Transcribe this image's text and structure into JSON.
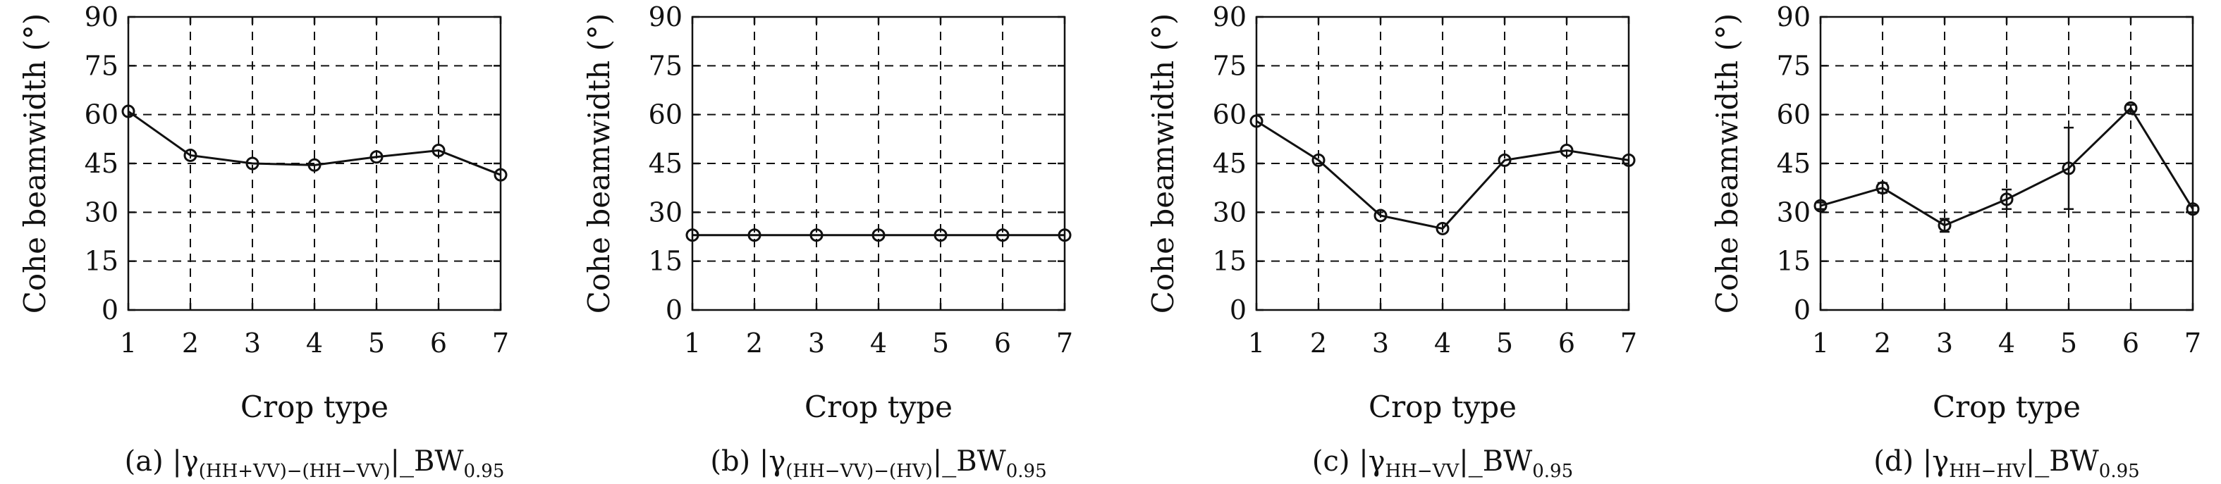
{
  "chart_data": [
    {
      "type": "line",
      "panel": "a",
      "caption": {
        "prefix": "(a) |γ",
        "subscript": "(HH+VV)−(HH−VV)",
        "suffix": "|_BW",
        "suffix_sub": "0.95"
      },
      "xlabel": "Crop type",
      "ylabel": "Cohe beamwidth (°)",
      "x": [
        1,
        2,
        3,
        4,
        5,
        6,
        7
      ],
      "xticks": [
        "1",
        "2",
        "3",
        "4",
        "5",
        "6",
        "7"
      ],
      "yticks": [
        "0",
        "15",
        "30",
        "45",
        "60",
        "75",
        "90"
      ],
      "ylim": [
        0,
        90
      ],
      "grid": true,
      "marker": "circle",
      "series": [
        {
          "values": [
            61,
            47.5,
            45,
            44.5,
            47,
            49,
            41.5
          ]
        }
      ]
    },
    {
      "type": "line",
      "panel": "b",
      "caption": {
        "prefix": "(b) |γ",
        "subscript": "(HH−VV)−(HV)",
        "suffix": "|_BW",
        "suffix_sub": "0.95"
      },
      "xlabel": "Crop type",
      "ylabel": "Cohe beamwidth (°)",
      "x": [
        1,
        2,
        3,
        4,
        5,
        6,
        7
      ],
      "xticks": [
        "1",
        "2",
        "3",
        "4",
        "5",
        "6",
        "7"
      ],
      "yticks": [
        "0",
        "15",
        "30",
        "45",
        "60",
        "75",
        "90"
      ],
      "ylim": [
        0,
        90
      ],
      "grid": true,
      "marker": "circle",
      "series": [
        {
          "values": [
            23,
            23,
            23,
            23,
            23,
            23,
            23
          ]
        }
      ]
    },
    {
      "type": "line",
      "panel": "c",
      "caption": {
        "prefix": "(c) |γ",
        "subscript": "HH−VV",
        "suffix": "|_BW",
        "suffix_sub": "0.95"
      },
      "xlabel": "Crop type",
      "ylabel": "Cohe beamwidth (°)",
      "x": [
        1,
        2,
        3,
        4,
        5,
        6,
        7
      ],
      "xticks": [
        "1",
        "2",
        "3",
        "4",
        "5",
        "6",
        "7"
      ],
      "yticks": [
        "0",
        "15",
        "30",
        "45",
        "60",
        "75",
        "90"
      ],
      "ylim": [
        0,
        90
      ],
      "grid": true,
      "marker": "circle",
      "series": [
        {
          "values": [
            58,
            46,
            29,
            25,
            46,
            49,
            46
          ]
        }
      ]
    },
    {
      "type": "line",
      "panel": "d",
      "caption": {
        "prefix": "(d) |γ",
        "subscript": "HH−HV",
        "suffix": "|_BW",
        "suffix_sub": "0.95"
      },
      "xlabel": "Crop type",
      "ylabel": "Cohe beamwidth (°)",
      "x": [
        1,
        2,
        3,
        4,
        5,
        6,
        7
      ],
      "xticks": [
        "1",
        "2",
        "3",
        "4",
        "5",
        "6",
        "7"
      ],
      "yticks": [
        "0",
        "15",
        "30",
        "45",
        "60",
        "75",
        "90"
      ],
      "ylim": [
        0,
        90
      ],
      "grid": true,
      "marker": "circle",
      "series": [
        {
          "values": [
            32,
            37.5,
            26,
            34,
            43.5,
            62,
            31
          ],
          "error_low": [
            31,
            36,
            24,
            31,
            31,
            61,
            30
          ],
          "error_high": [
            33,
            39,
            28,
            37,
            56,
            63,
            32
          ]
        }
      ]
    }
  ]
}
